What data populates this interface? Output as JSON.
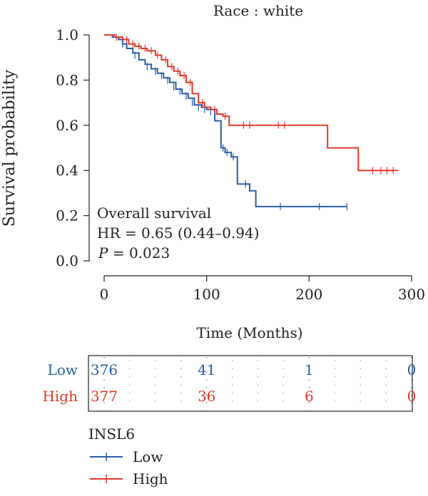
{
  "chart_data": {
    "type": "line",
    "title": "Race : white",
    "xlabel": "Time (Months)",
    "ylabel": "Survival probability",
    "xlim": [
      0,
      300
    ],
    "ylim": [
      0,
      1
    ],
    "x_ticks": [
      "0",
      "100",
      "200",
      "300"
    ],
    "y_ticks": [
      "0.0",
      "0.2",
      "0.4",
      "0.6",
      "0.8",
      "1.0"
    ],
    "colors": {
      "Low": "#2a5ea8",
      "High": "#e0392b"
    },
    "series": [
      {
        "name": "Low",
        "color": "#2a5ea8",
        "steps": [
          [
            0,
            1.0
          ],
          [
            8,
            0.99
          ],
          [
            14,
            0.98
          ],
          [
            18,
            0.96
          ],
          [
            22,
            0.94
          ],
          [
            28,
            0.92
          ],
          [
            34,
            0.89
          ],
          [
            40,
            0.87
          ],
          [
            46,
            0.85
          ],
          [
            52,
            0.83
          ],
          [
            58,
            0.81
          ],
          [
            64,
            0.79
          ],
          [
            70,
            0.76
          ],
          [
            76,
            0.74
          ],
          [
            82,
            0.72
          ],
          [
            88,
            0.69
          ],
          [
            95,
            0.68
          ],
          [
            100,
            0.67
          ],
          [
            108,
            0.62
          ],
          [
            114,
            0.5
          ],
          [
            118,
            0.48
          ],
          [
            124,
            0.46
          ],
          [
            130,
            0.34
          ],
          [
            136,
            0.34
          ],
          [
            142,
            0.31
          ],
          [
            148,
            0.24
          ],
          [
            237,
            0.24
          ]
        ],
        "censor": [
          [
            18,
            0.96
          ],
          [
            30,
            0.91
          ],
          [
            42,
            0.86
          ],
          [
            50,
            0.84
          ],
          [
            56,
            0.82
          ],
          [
            62,
            0.8
          ],
          [
            68,
            0.77
          ],
          [
            74,
            0.75
          ],
          [
            80,
            0.73
          ],
          [
            86,
            0.7
          ],
          [
            92,
            0.68
          ],
          [
            98,
            0.67
          ],
          [
            104,
            0.66
          ],
          [
            116,
            0.5
          ],
          [
            120,
            0.48
          ],
          [
            126,
            0.46
          ],
          [
            138,
            0.34
          ],
          [
            172,
            0.24
          ],
          [
            210,
            0.24
          ],
          [
            237,
            0.24
          ]
        ]
      },
      {
        "name": "High",
        "color": "#e0392b",
        "steps": [
          [
            0,
            1.0
          ],
          [
            10,
            0.99
          ],
          [
            18,
            0.98
          ],
          [
            24,
            0.96
          ],
          [
            30,
            0.95
          ],
          [
            36,
            0.94
          ],
          [
            42,
            0.93
          ],
          [
            50,
            0.91
          ],
          [
            56,
            0.89
          ],
          [
            62,
            0.86
          ],
          [
            68,
            0.84
          ],
          [
            74,
            0.82
          ],
          [
            80,
            0.79
          ],
          [
            86,
            0.74
          ],
          [
            92,
            0.7
          ],
          [
            98,
            0.68
          ],
          [
            104,
            0.67
          ],
          [
            110,
            0.65
          ],
          [
            116,
            0.64
          ],
          [
            122,
            0.6
          ],
          [
            218,
            0.6
          ],
          [
            218,
            0.5
          ],
          [
            248,
            0.5
          ],
          [
            248,
            0.4
          ],
          [
            287,
            0.4
          ]
        ],
        "censor": [
          [
            12,
            0.99
          ],
          [
            22,
            0.98
          ],
          [
            28,
            0.96
          ],
          [
            34,
            0.95
          ],
          [
            40,
            0.94
          ],
          [
            46,
            0.93
          ],
          [
            52,
            0.91
          ],
          [
            60,
            0.89
          ],
          [
            66,
            0.86
          ],
          [
            72,
            0.84
          ],
          [
            78,
            0.82
          ],
          [
            84,
            0.79
          ],
          [
            96,
            0.7
          ],
          [
            108,
            0.67
          ],
          [
            118,
            0.64
          ],
          [
            136,
            0.6
          ],
          [
            142,
            0.6
          ],
          [
            170,
            0.6
          ],
          [
            176,
            0.6
          ],
          [
            262,
            0.4
          ],
          [
            270,
            0.4
          ],
          [
            276,
            0.4
          ],
          [
            282,
            0.4
          ]
        ]
      }
    ]
  },
  "annotations": {
    "line1": "Overall survival",
    "line2": "HR = 0.65 (0.44–0.94)",
    "line3_italic": "P",
    "line3_rest": " = 0.023"
  },
  "risk_table": {
    "times": [
      0,
      100,
      200,
      300
    ],
    "rows": [
      {
        "label": "Low",
        "color": "#2a5ea8",
        "values": [
          "376",
          "41",
          "1",
          "0"
        ]
      },
      {
        "label": "High",
        "color": "#e0392b",
        "values": [
          "377",
          "36",
          "6",
          "0"
        ]
      }
    ]
  },
  "legend": {
    "title": "INSL6",
    "items": [
      {
        "label": "Low",
        "color": "#2a5ea8"
      },
      {
        "label": "High",
        "color": "#e0392b"
      }
    ]
  }
}
